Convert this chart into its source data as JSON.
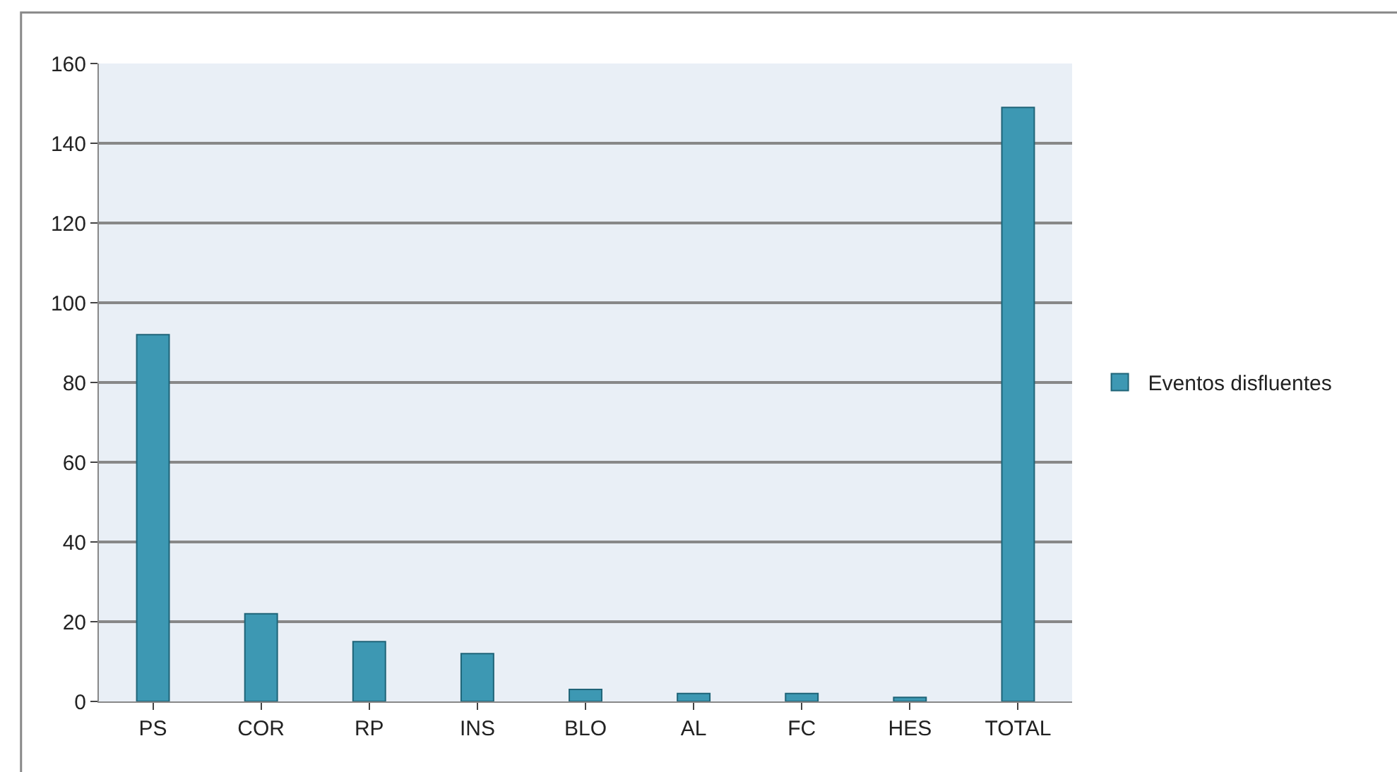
{
  "chart_data": {
    "type": "bar",
    "categories": [
      "PS",
      "COR",
      "RP",
      "INS",
      "BLO",
      "AL",
      "FC",
      "HES",
      "TOTAL"
    ],
    "series": [
      {
        "name": "Eventos disfluentes",
        "color": "#3d98b3",
        "values": [
          92,
          22,
          15,
          12,
          3,
          2,
          2,
          1,
          149
        ]
      }
    ],
    "ylim": [
      0,
      160
    ],
    "yticks": [
      0,
      20,
      40,
      60,
      80,
      100,
      120,
      140,
      160
    ],
    "grid": "y",
    "legend": "right"
  }
}
